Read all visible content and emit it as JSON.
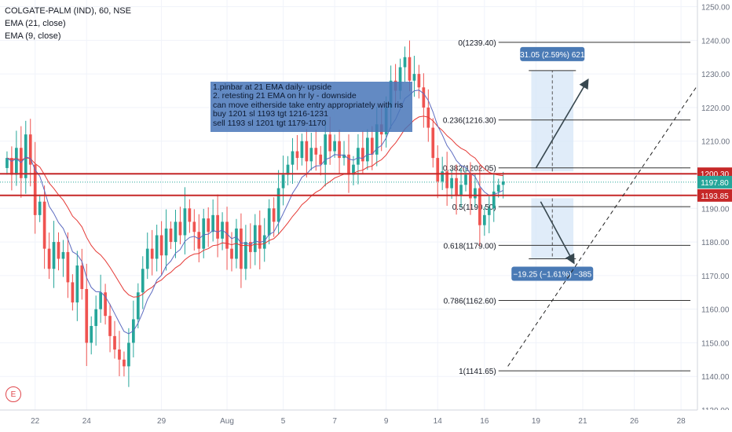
{
  "legend": {
    "symbol": "COLGATE-PALM (IND), 60, NSE",
    "ema21": "EMA (21, close)",
    "ema9": "EMA (9, close)"
  },
  "note": {
    "lines": [
      "1.pinbar at 21 EMA daily- upside",
      "2. retesting 21 EMA on hr ly - downside",
      "can move eitherside take entry appropriately with ris",
      "buy 1201 sl 1193 tgt 1216-1231",
      "sell 1193 sl 1201 tgt 1179-1170"
    ]
  },
  "events_badge": "E",
  "colors": {
    "up": "#26a69a",
    "down": "#ef5350",
    "ema21": "#e53935",
    "ema9": "#5c6bc0",
    "level_line": "#c62828",
    "price_tag": "#26a69a",
    "measure_box": "#d6e6f7",
    "measure_label": "#4a7ab5"
  },
  "chart_data": {
    "type": "candlestick",
    "title": "COLGATE-PALM (IND), 60, NSE",
    "ylim": [
      1130,
      1252
    ],
    "y_ticks": [
      1130,
      1140,
      1150,
      1160,
      1170,
      1180,
      1190,
      1200,
      1210,
      1220,
      1230,
      1240,
      1250
    ],
    "y_tick_labels": [
      "1130.00",
      "1140.00",
      "1150.00",
      "1160.00",
      "1170.00",
      "1180.00",
      "1190.00",
      "1200.00",
      "1210.00",
      "1220.00",
      "1230.00",
      "1240.00",
      "1250.00"
    ],
    "x_ticks": [
      {
        "label": "22",
        "index": 6
      },
      {
        "label": "24",
        "index": 17
      },
      {
        "label": "29",
        "index": 33
      },
      {
        "label": "Aug",
        "index": 47
      },
      {
        "label": "5",
        "index": 59
      },
      {
        "label": "7",
        "index": 70
      },
      {
        "label": "9",
        "index": 81
      },
      {
        "label": "14",
        "index": 92
      },
      {
        "label": "16",
        "index": 102
      },
      {
        "label": "19",
        "index": 113
      },
      {
        "label": "21",
        "index": 123
      },
      {
        "label": "26",
        "index": 134
      },
      {
        "label": "28",
        "index": 144
      }
    ],
    "x_index_range": [
      -1.5,
      147.5
    ],
    "closes": [
      1205,
      1200,
      1208,
      1199,
      1212,
      1203,
      1188,
      1192,
      1178,
      1172,
      1180,
      1175,
      1177,
      1168,
      1162,
      1173,
      1166,
      1150,
      1155,
      1160,
      1165,
      1158,
      1152,
      1148,
      1145,
      1143,
      1150,
      1157,
      1165,
      1172,
      1178,
      1175,
      1182,
      1176,
      1184,
      1180,
      1186,
      1182,
      1190,
      1186,
      1183,
      1178,
      1187,
      1183,
      1188,
      1181,
      1186,
      1178,
      1175,
      1184,
      1172,
      1180,
      1177,
      1185,
      1178,
      1182,
      1190,
      1186,
      1196,
      1200,
      1203,
      1207,
      1205,
      1210,
      1204,
      1208,
      1206,
      1203,
      1212,
      1207,
      1210,
      1205,
      1206,
      1200,
      1203,
      1208,
      1204,
      1211,
      1206,
      1215,
      1212,
      1220,
      1228,
      1225,
      1232,
      1235,
      1228,
      1230,
      1226,
      1220,
      1214,
      1205,
      1198,
      1201,
      1196,
      1199,
      1194,
      1197,
      1200,
      1193,
      1196,
      1185,
      1188,
      1190,
      1195,
      1197,
      1198
    ],
    "series": [
      {
        "name": "EMA (21, close)"
      },
      {
        "name": "EMA (9, close)"
      }
    ],
    "last_price": {
      "value": 1197.8,
      "label": "1197.80"
    },
    "horizontal_levels": [
      {
        "value": 1200.3,
        "label": "1200.30"
      },
      {
        "value": 1193.85,
        "label": "1193.85"
      }
    ],
    "fibonacci": [
      {
        "label": "0(1239.40)",
        "value": 1239.4
      },
      {
        "label": "0.236(1216.30)",
        "value": 1216.3
      },
      {
        "label": "0.382(1202.05)",
        "value": 1202.05
      },
      {
        "label": "0.5(1190.50)",
        "value": 1190.5
      },
      {
        "label": "0.618(1179.00)",
        "value": 1179.0
      },
      {
        "label": "0.786(1162.60)",
        "value": 1162.6
      },
      {
        "label": "1(1141.65)",
        "value": 1141.65
      }
    ],
    "fib_x_range": [
      105,
      146
    ],
    "trend_line": {
      "x1": 107,
      "y1": 1143,
      "x2": 154,
      "y2": 1240
    },
    "long_measure": {
      "x1": 112,
      "x2": 121,
      "entry": 1201,
      "target": 1231,
      "label": "31.05 (2.59%) 621"
    },
    "short_measure": {
      "x1": 112,
      "x2": 121,
      "entry": 1193,
      "target": 1175,
      "label": "−19.25 (−1.61%) −385"
    },
    "arrows": [
      {
        "x1": 113,
        "y1": 1202,
        "x2": 124,
        "y2": 1228
      },
      {
        "x1": 114,
        "y1": 1192,
        "x2": 121,
        "y2": 1174
      }
    ]
  }
}
